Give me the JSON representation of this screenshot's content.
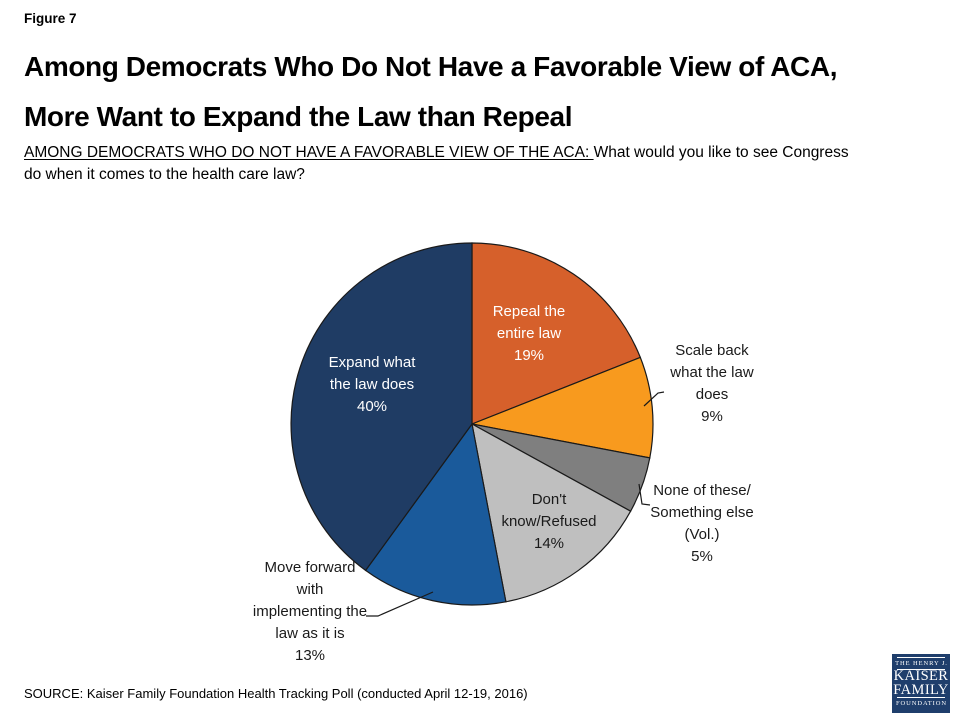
{
  "figure_label": "Figure 7",
  "title": "Among Democrats Who Do Not Have a Favorable View of ACA,\nMore Want to Expand the Law than Repeal",
  "question": {
    "prefix": "AMONG DEMOCRATS WHO DO NOT HAVE A FAVORABLE VIEW OF THE ACA: ",
    "text": "What would you like to see Congress\ndo when it comes to the health care law?"
  },
  "source": "SOURCE: Kaiser Family Foundation Health Tracking Poll (conducted April 12-19, 2016)",
  "logo": {
    "line1": "THE HENRY J.",
    "line2": "KAISER",
    "line3": "FAMILY",
    "line4": "FOUNDATION",
    "bg_color": "#1F3E6C"
  },
  "chart_data": {
    "type": "pie",
    "title": "Among Democrats Who Do Not Have a Favorable View of ACA, More Want to Expand the Law than Repeal",
    "start_angle_deg": 0,
    "clockwise": true,
    "legend_position": "none",
    "slices": [
      {
        "id": "repeal",
        "name": "Repeal the entire law",
        "value": 19,
        "color": "#D6602B",
        "label": "Repeal the\nentire law\n19%",
        "label_placement": "inside",
        "label_color": "#FFFFFF"
      },
      {
        "id": "scale-back",
        "name": "Scale back what the law does",
        "value": 9,
        "color": "#F89A1E",
        "label": "Scale back\nwhat the law\ndoes\n9%",
        "label_placement": "outside",
        "label_color": "#1A1A1A"
      },
      {
        "id": "none-of-these",
        "name": "None of these/Something else (Vol.)",
        "value": 5,
        "color": "#7F7F7F",
        "label": "None of these/\nSomething else\n(Vol.)\n5%",
        "label_placement": "outside",
        "label_color": "#1A1A1A"
      },
      {
        "id": "dont-know",
        "name": "Don't know/Refused",
        "value": 14,
        "color": "#BFBFBF",
        "label": "Don't\nknow/Refused\n14%",
        "label_placement": "inside",
        "label_color": "#1A1A1A"
      },
      {
        "id": "move-forward",
        "name": "Move forward with implementing the law as it is",
        "value": 13,
        "color": "#1A5A9B",
        "label": "Move forward\nwith\nimplementing the\nlaw as it is\n13%",
        "label_placement": "outside",
        "label_color": "#1A1A1A"
      },
      {
        "id": "expand",
        "name": "Expand what the law does",
        "value": 40,
        "color": "#1F3C64",
        "label": "Expand what\nthe law does\n40%",
        "label_placement": "inside",
        "label_color": "#FFFFFF"
      }
    ]
  }
}
